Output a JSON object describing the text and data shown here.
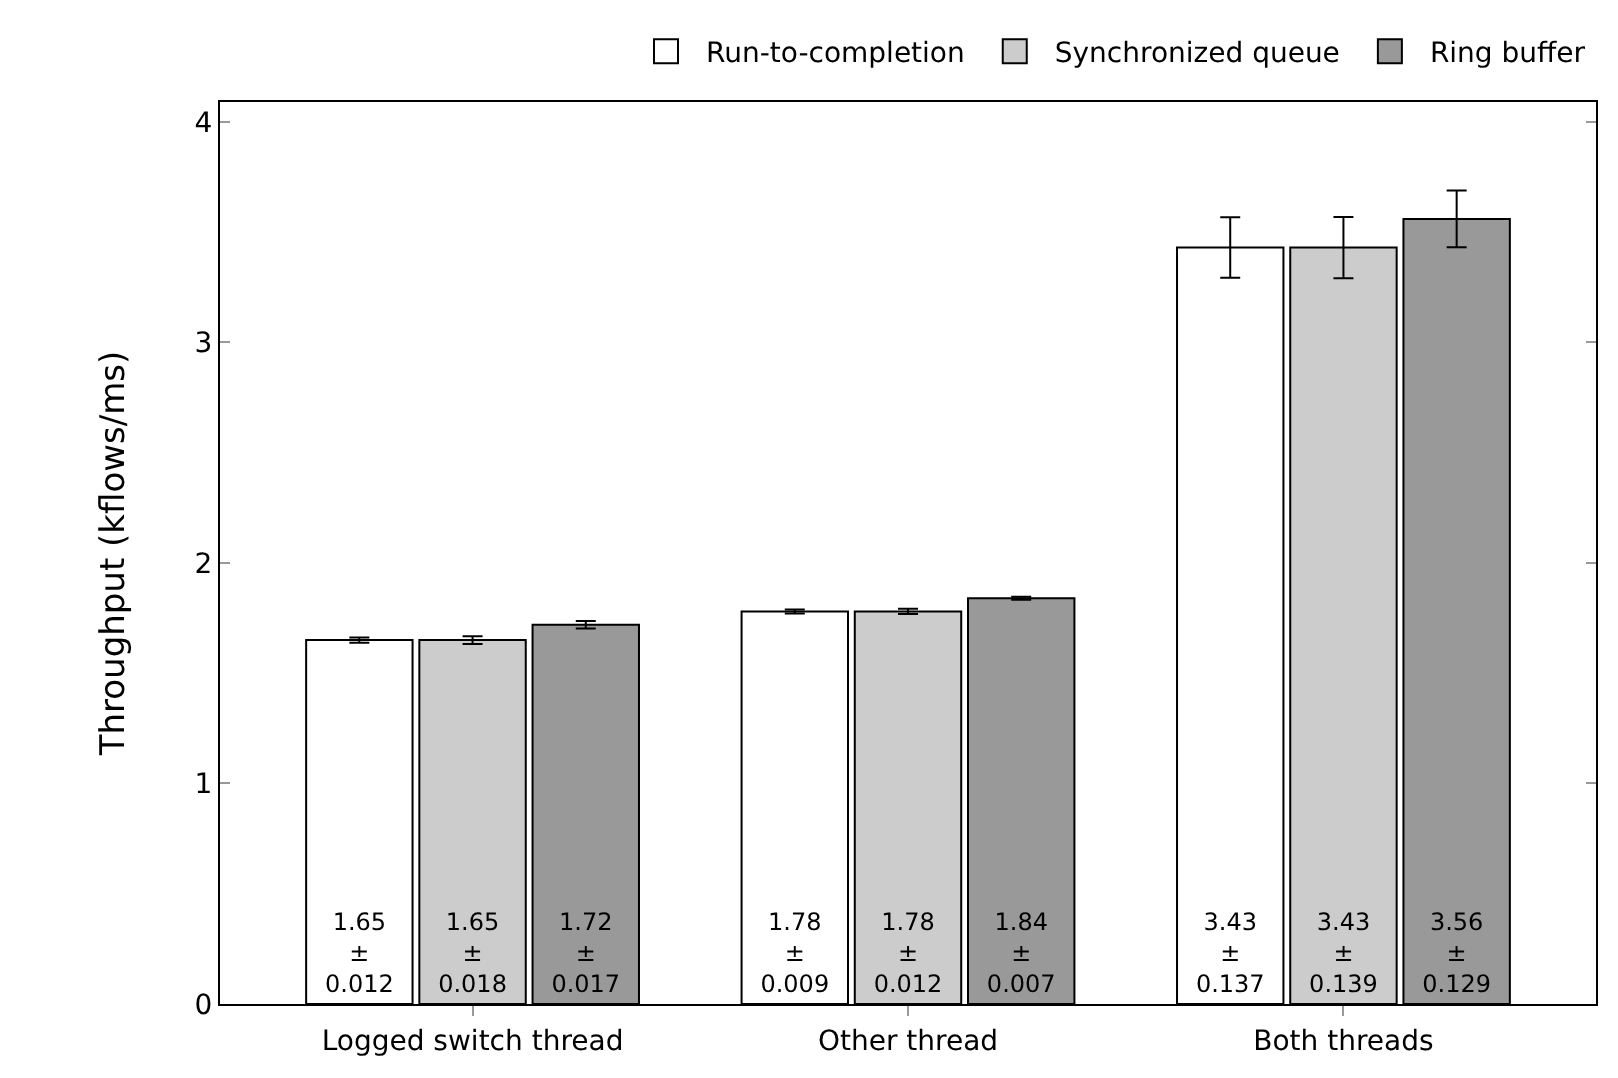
{
  "chart_data": {
    "type": "bar",
    "ylabel": "Throughput (kflows/ms)",
    "categories": [
      "Logged switch thread",
      "Other thread",
      "Both threads"
    ],
    "series": [
      {
        "name": "Run-to-completion",
        "color": "#ffffff",
        "values": [
          1.65,
          1.78,
          3.43
        ],
        "errors": [
          0.012,
          0.009,
          0.137
        ],
        "value_labels": [
          "1.65\n±\n0.012",
          "1.78\n±\n0.009",
          "3.43\n±\n0.137"
        ]
      },
      {
        "name": "Synchronized queue",
        "color": "#cccccc",
        "values": [
          1.65,
          1.78,
          3.43
        ],
        "errors": [
          0.018,
          0.012,
          0.139
        ],
        "value_labels": [
          "1.65\n±\n0.018",
          "1.78\n±\n0.012",
          "3.43\n±\n0.139"
        ]
      },
      {
        "name": "Ring buffer",
        "color": "#999999",
        "values": [
          1.72,
          1.84,
          3.56
        ],
        "errors": [
          0.017,
          0.007,
          0.129
        ],
        "value_labels": [
          "1.72\n±\n0.017",
          "1.84\n±\n0.007",
          "3.56\n±\n0.129"
        ]
      }
    ],
    "ylim": [
      0,
      4.09
    ],
    "yticks": [
      0,
      1,
      2,
      3,
      4
    ],
    "legend": "top right"
  }
}
